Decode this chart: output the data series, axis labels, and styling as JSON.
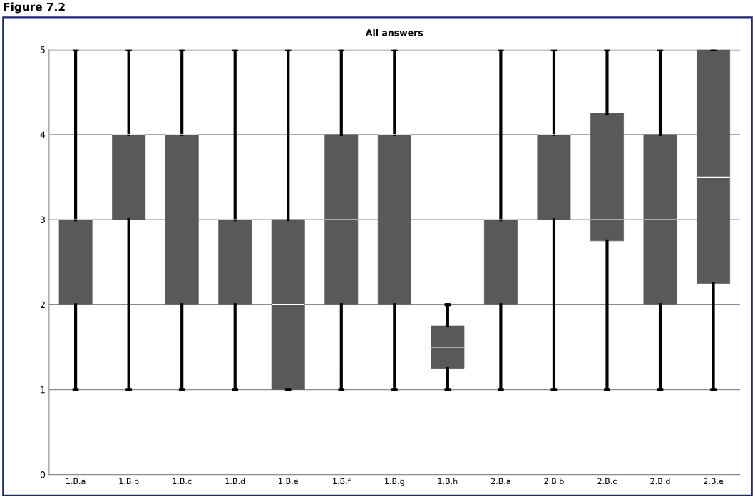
{
  "chart_data": {
    "type": "box",
    "title": "All answers",
    "annotations": [
      "Figure 7.2"
    ],
    "categories": [
      "1.B.a",
      "1.B.b",
      "1.B.c",
      "1.B.d",
      "1.B.e",
      "1.B.f",
      "1.B.g",
      "1.B.h",
      "2.B.a",
      "2.B.b",
      "2.B.c",
      "2.B.d",
      "2.B.e"
    ],
    "boxes": [
      {
        "low": 1,
        "q1": 2,
        "median": 3,
        "q3": 3,
        "high": 5
      },
      {
        "low": 1,
        "q1": 3,
        "median": 4,
        "q3": 4,
        "high": 5
      },
      {
        "low": 1,
        "q1": 2,
        "median": 4,
        "q3": 4,
        "high": 5
      },
      {
        "low": 1,
        "q1": 2,
        "median": 3,
        "q3": 3,
        "high": 5
      },
      {
        "low": 1,
        "q1": 1,
        "median": 2,
        "q3": 3,
        "high": 5
      },
      {
        "low": 1,
        "q1": 2,
        "median": 3,
        "q3": 4,
        "high": 5
      },
      {
        "low": 1,
        "q1": 2,
        "median": 4,
        "q3": 4,
        "high": 5
      },
      {
        "low": 1,
        "q1": 1.25,
        "median": 1.5,
        "q3": 1.75,
        "high": 2
      },
      {
        "low": 1,
        "q1": 2,
        "median": 3,
        "q3": 3,
        "high": 5
      },
      {
        "low": 1,
        "q1": 3,
        "median": 4,
        "q3": 4,
        "high": 5
      },
      {
        "low": 1,
        "q1": 2.75,
        "median": 3,
        "q3": 4.25,
        "high": 5
      },
      {
        "low": 1,
        "q1": 2,
        "median": 3,
        "q3": 4,
        "high": 5
      },
      {
        "low": 1,
        "q1": 2.25,
        "median": 3.5,
        "q3": 5,
        "high": 5
      }
    ],
    "color": "#595959",
    "ylim": [
      0,
      5
    ],
    "yticks": [
      0,
      1,
      2,
      3,
      4,
      5
    ],
    "grid": "y"
  }
}
